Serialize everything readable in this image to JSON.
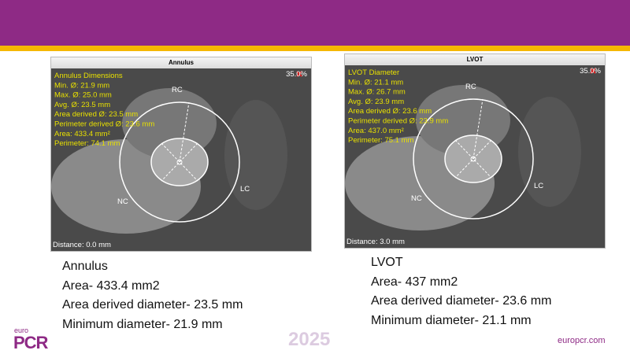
{
  "panels": [
    {
      "title": "Annulus",
      "zoom": "35.0%",
      "distance": "Distance: 0.0 mm",
      "marker_labels": [
        "RC",
        "NC",
        "LC"
      ],
      "overlay": [
        "Annulus Dimensions",
        "Min. Ø: 21.9 mm",
        "Max. Ø: 25.0 mm",
        "Avg. Ø: 23.5 mm",
        "Area derived Ø: 23.5 mm",
        "Perimeter derived Ø: 23.6 mm",
        "Area: 433.4 mm²",
        "Perimeter: 74.1 mm"
      ],
      "caption": [
        "Annulus",
        "Area- 433.4 mm2",
        "Area derived diameter- 23.5 mm",
        "Minimum diameter- 21.9 mm"
      ]
    },
    {
      "title": "LVOT",
      "zoom": "35.0%",
      "distance": "Distance: 3.0 mm",
      "marker_labels": [
        "RC",
        "NC",
        "LC"
      ],
      "overlay": [
        "LVOT Diameter",
        "Min. Ø: 21.1 mm",
        "Max. Ø: 26.7 mm",
        "Avg. Ø: 23.9 mm",
        "Area derived Ø: 23.6 mm",
        "Perimeter derived Ø: 23.9 mm",
        "Area: 437.0 mm²",
        "Perimeter: 75.1 mm"
      ],
      "caption": [
        "LVOT",
        "Area- 437 mm2",
        "Area derived diameter- 23.6 mm",
        "Minimum diameter- 21.1 mm"
      ]
    }
  ],
  "footer": {
    "logo_small": "euro",
    "logo": "PCR",
    "year": "2025",
    "site": "europcr.com"
  }
}
